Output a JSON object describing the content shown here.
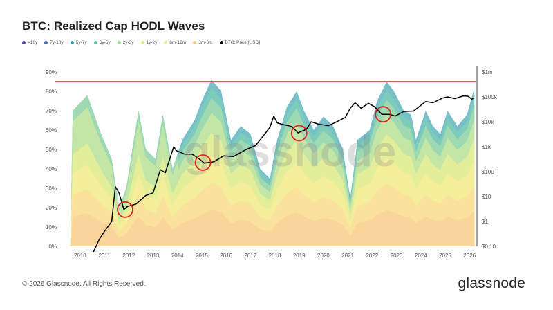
{
  "title": "BTC: Realized Cap HODL Waves",
  "footer": {
    "copyright": "© 2026 Glassnode. All Rights Reserved.",
    "brand": "glassnode"
  },
  "watermark": "glassnode",
  "colors": {
    "price": "#000000",
    "reference_line": "#e02020",
    "circle": "#e02020"
  },
  "chart_data": {
    "type": "area",
    "title": "BTC: Realized Cap HODL Waves",
    "legend": [
      {
        "name": ">10y",
        "color": "#5b3fa3"
      },
      {
        "name": "7y-10y",
        "color": "#3f6fb0"
      },
      {
        "name": "5y-7y",
        "color": "#3a9ab0"
      },
      {
        "name": "3y-5y",
        "color": "#62c3b4"
      },
      {
        "name": "2y-3y",
        "color": "#9fd9a0"
      },
      {
        "name": "1y-2y",
        "color": "#dbe98d"
      },
      {
        "name": "6m-12m",
        "color": "#f6ea8e"
      },
      {
        "name": "3m-6m",
        "color": "#f8c88a"
      },
      {
        "name": "BTC: Price [USD]",
        "color": "#000000"
      }
    ],
    "x_ticks": [
      "2010",
      "2011",
      "2012",
      "2013",
      "2014",
      "2015",
      "2016",
      "2017",
      "2018",
      "2019",
      "2020",
      "2021",
      "2022",
      "2023",
      "2024",
      "2025",
      "2026"
    ],
    "y_left_ticks": [
      "0%",
      "10%",
      "20%",
      "30%",
      "40%",
      "50%",
      "60%",
      "70%",
      "80%",
      "90%"
    ],
    "y_left_range": [
      0,
      90
    ],
    "y_right_ticks": [
      "$0.10",
      "$1",
      "$10",
      "$100",
      "$1k",
      "$10k",
      "$100k",
      "$1m"
    ],
    "y_right_range_log": [
      0.1,
      1000000
    ],
    "reference_line_pct": 85,
    "circles": [
      {
        "year": 2011.85,
        "price": 3
      },
      {
        "year": 2015.05,
        "price": 230
      },
      {
        "year": 2019.0,
        "price": 3500
      },
      {
        "year": 2022.45,
        "price": 20000
      }
    ],
    "price_series": {
      "name": "BTC: Price [USD]",
      "x": [
        2010.55,
        2010.8,
        2011.0,
        2011.3,
        2011.45,
        2011.6,
        2011.8,
        2011.95,
        2012.3,
        2012.7,
        2013.0,
        2013.3,
        2013.5,
        2013.85,
        2013.95,
        2014.3,
        2014.6,
        2014.9,
        2015.1,
        2015.5,
        2015.9,
        2016.3,
        2016.8,
        2017.2,
        2017.5,
        2017.8,
        2017.96,
        2018.1,
        2018.4,
        2018.7,
        2018.95,
        2019.3,
        2019.5,
        2019.8,
        2020.2,
        2020.5,
        2020.9,
        2021.1,
        2021.3,
        2021.55,
        2021.85,
        2022.1,
        2022.4,
        2022.7,
        2022.95,
        2023.3,
        2023.7,
        2023.95,
        2024.2,
        2024.5,
        2024.9,
        2025.1,
        2025.4,
        2025.75,
        2025.95,
        2026.1,
        2026.15
      ],
      "y": [
        0.06,
        0.2,
        0.4,
        1,
        25,
        14,
        3,
        4,
        5,
        11,
        14,
        120,
        90,
        1000,
        700,
        500,
        500,
        320,
        220,
        250,
        430,
        400,
        750,
        1100,
        2500,
        6000,
        17000,
        9000,
        7500,
        6500,
        3600,
        5000,
        10000,
        8000,
        7000,
        9500,
        15000,
        35000,
        58000,
        35000,
        55000,
        40000,
        20000,
        20000,
        17000,
        26000,
        27000,
        42000,
        65000,
        58000,
        90000,
        100000,
        85000,
        110000,
        105000,
        80000,
        88000
      ]
    }
  }
}
